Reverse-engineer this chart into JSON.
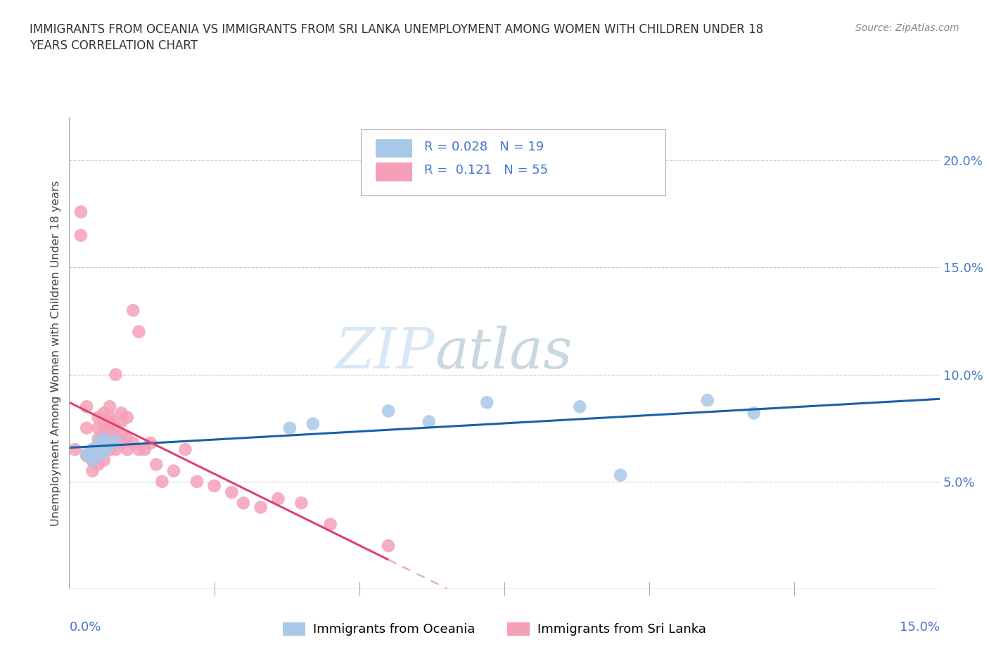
{
  "title_line1": "IMMIGRANTS FROM OCEANIA VS IMMIGRANTS FROM SRI LANKA UNEMPLOYMENT AMONG WOMEN WITH CHILDREN UNDER 18",
  "title_line2": "YEARS CORRELATION CHART",
  "source": "Source: ZipAtlas.com",
  "ylabel": "Unemployment Among Women with Children Under 18 years",
  "xlim": [
    0.0,
    0.15
  ],
  "ylim": [
    0.0,
    0.22
  ],
  "y_ticks": [
    0.0,
    0.05,
    0.1,
    0.15,
    0.2
  ],
  "y_tick_labels": [
    "",
    "5.0%",
    "10.0%",
    "15.0%",
    "20.0%"
  ],
  "oceania_color": "#a8c8e8",
  "srilanka_color": "#f4a0b8",
  "oceania_line_color": "#1a5fa8",
  "srilanka_line_color": "#e04070",
  "srilanka_dashed_color": "#e8b0c0",
  "oceania_x": [
    0.003,
    0.004,
    0.004,
    0.005,
    0.005,
    0.005,
    0.006,
    0.006,
    0.007,
    0.008,
    0.038,
    0.042,
    0.055,
    0.062,
    0.072,
    0.088,
    0.095,
    0.11,
    0.118
  ],
  "oceania_y": [
    0.063,
    0.065,
    0.06,
    0.066,
    0.062,
    0.068,
    0.07,
    0.064,
    0.067,
    0.069,
    0.075,
    0.077,
    0.083,
    0.078,
    0.087,
    0.085,
    0.053,
    0.088,
    0.082
  ],
  "srilanka_x": [
    0.001,
    0.002,
    0.002,
    0.003,
    0.003,
    0.003,
    0.004,
    0.004,
    0.004,
    0.005,
    0.005,
    0.005,
    0.005,
    0.005,
    0.006,
    0.006,
    0.006,
    0.006,
    0.006,
    0.007,
    0.007,
    0.007,
    0.007,
    0.007,
    0.007,
    0.008,
    0.008,
    0.008,
    0.008,
    0.009,
    0.009,
    0.009,
    0.009,
    0.01,
    0.01,
    0.01,
    0.011,
    0.011,
    0.012,
    0.012,
    0.013,
    0.014,
    0.015,
    0.016,
    0.018,
    0.02,
    0.022,
    0.025,
    0.028,
    0.03,
    0.033,
    0.036,
    0.04,
    0.045,
    0.055
  ],
  "srilanka_y": [
    0.065,
    0.176,
    0.165,
    0.062,
    0.075,
    0.085,
    0.06,
    0.065,
    0.055,
    0.058,
    0.063,
    0.07,
    0.075,
    0.08,
    0.06,
    0.065,
    0.07,
    0.075,
    0.082,
    0.065,
    0.07,
    0.075,
    0.08,
    0.085,
    0.078,
    0.065,
    0.07,
    0.075,
    0.1,
    0.068,
    0.072,
    0.078,
    0.082,
    0.065,
    0.07,
    0.08,
    0.068,
    0.13,
    0.065,
    0.12,
    0.065,
    0.068,
    0.058,
    0.05,
    0.055,
    0.065,
    0.05,
    0.048,
    0.045,
    0.04,
    0.038,
    0.042,
    0.04,
    0.03,
    0.02
  ],
  "legend_oceania": "Immigrants from Oceania",
  "legend_srilanka": "Immigrants from Sri Lanka",
  "watermark_zip": "ZIP",
  "watermark_atlas": "atlas",
  "background_color": "#ffffff",
  "grid_color": "#cccccc"
}
